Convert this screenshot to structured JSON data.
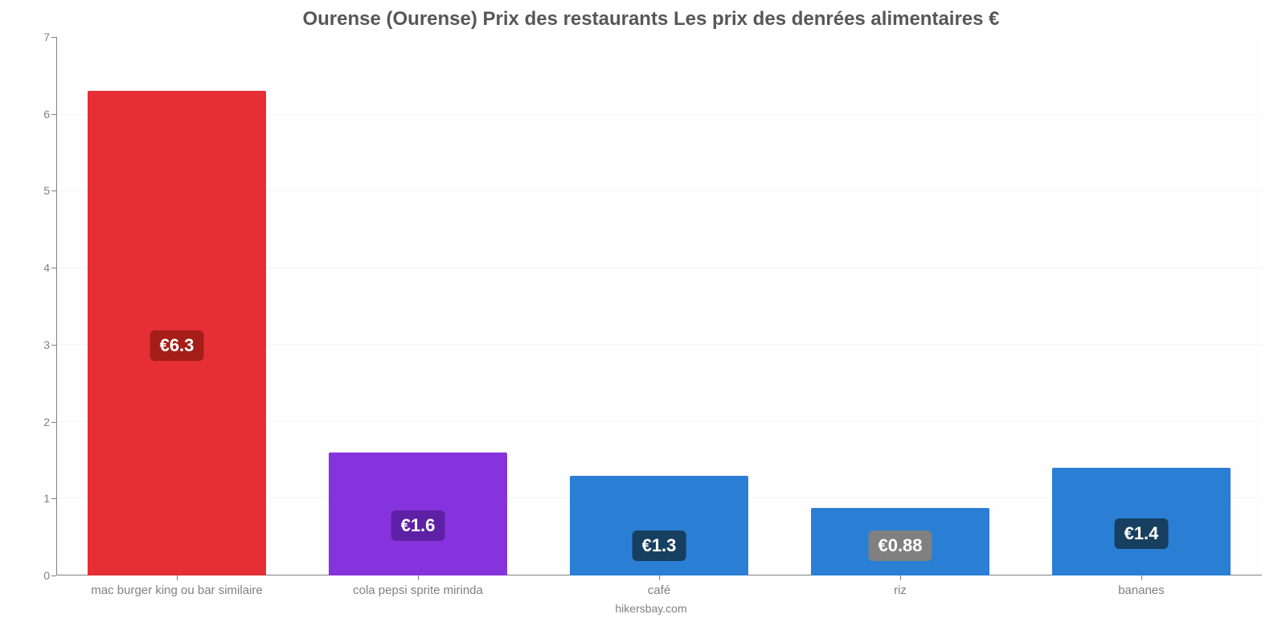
{
  "chart": {
    "type": "bar",
    "title": "Ourense (Ourense) Prix des restaurants Les prix des denrées alimentaires €",
    "title_fontsize": 24,
    "title_color": "#575757",
    "background_color": "#ffffff",
    "plot_background_color": "#fefefe",
    "axis_color": "#808080",
    "grid_color": "#f5f5f5",
    "ylim": [
      0,
      7
    ],
    "ytick_step": 1,
    "bar_width_pct": 74,
    "categories": [
      "mac burger king ou bar similaire",
      "cola pepsi sprite mirinda",
      "café",
      "riz",
      "bananes"
    ],
    "values": [
      6.3,
      1.6,
      1.3,
      0.88,
      1.4
    ],
    "value_labels": [
      "€6.3",
      "€1.6",
      "€1.3",
      "€0.88",
      "€1.4"
    ],
    "bar_colors": [
      "#e52f34",
      "#8633dd",
      "#2a7fd4",
      "#2a7fd4",
      "#2a7fd4"
    ],
    "badge_colors": [
      "#a51e18",
      "#5e21a6",
      "#173f5f",
      "#808080",
      "#173f5f"
    ],
    "badge_fontsize": 22,
    "xlabel_fontsize": 15,
    "ylabel_fontsize": 14,
    "attribution": "hikersbay.com",
    "attribution_fontsize": 14
  }
}
